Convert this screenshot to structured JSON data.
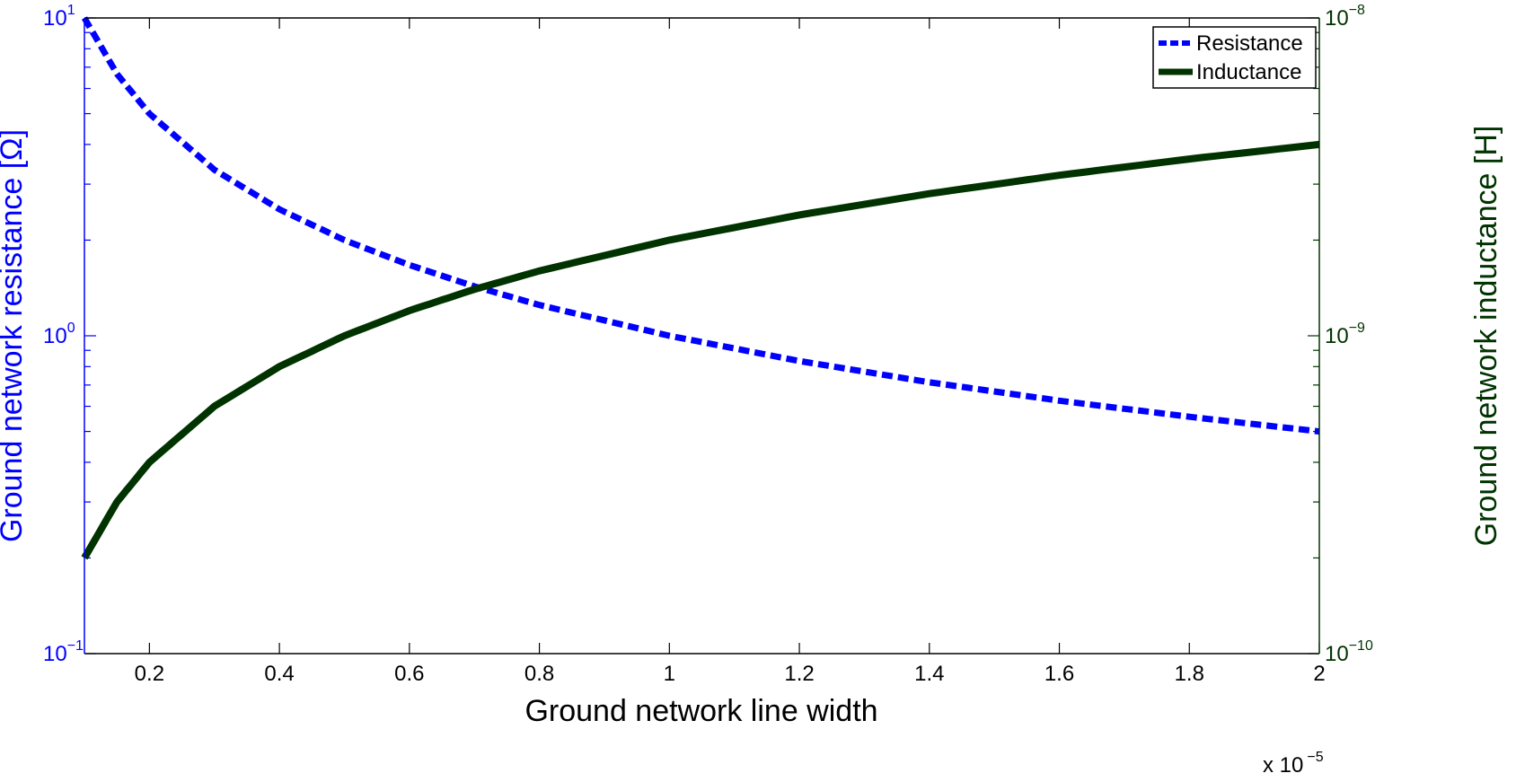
{
  "chart_data": {
    "type": "line",
    "xlabel": "Ground network line width",
    "x_multiplier_label": "x 10",
    "x_multiplier_exponent": "−5",
    "x_scale": 1e-05,
    "x_range": [
      0.1,
      2.0
    ],
    "x_ticks": [
      {
        "value": 0.2,
        "label": "0.2"
      },
      {
        "value": 0.4,
        "label": "0.4"
      },
      {
        "value": 0.6,
        "label": "0.6"
      },
      {
        "value": 0.8,
        "label": "0.8"
      },
      {
        "value": 1.0,
        "label": "1"
      },
      {
        "value": 1.2,
        "label": "1.2"
      },
      {
        "value": 1.4,
        "label": "1.4"
      },
      {
        "value": 1.6,
        "label": "1.6"
      },
      {
        "value": 1.8,
        "label": "1.8"
      },
      {
        "value": 2.0,
        "label": "2"
      }
    ],
    "y_left": {
      "label": "Ground network resistance [Ω]",
      "scale": "log",
      "range": [
        0.1,
        10
      ],
      "color": "#0000ff",
      "ticks": [
        {
          "value": 0.1,
          "base": "10",
          "exp": "−1"
        },
        {
          "value": 1,
          "base": "10",
          "exp": "0"
        },
        {
          "value": 10,
          "base": "10",
          "exp": "1"
        }
      ]
    },
    "y_right": {
      "label": "Ground network inductance [H]",
      "scale": "log",
      "range": [
        1e-10,
        1e-08
      ],
      "color": "#003300",
      "ticks": [
        {
          "value": 1e-10,
          "base": "10",
          "exp": "−10"
        },
        {
          "value": 1e-09,
          "base": "10",
          "exp": "−9"
        },
        {
          "value": 1e-08,
          "base": "10",
          "exp": "−8"
        }
      ]
    },
    "grid": false,
    "legend_position": "top-right",
    "series": [
      {
        "name": "Resistance",
        "axis": "left",
        "color": "#0000ff",
        "style": "dashed",
        "points": [
          [
            0.1,
            10
          ],
          [
            0.15,
            6.67
          ],
          [
            0.2,
            5.0
          ],
          [
            0.3,
            3.33
          ],
          [
            0.4,
            2.5
          ],
          [
            0.5,
            2.0
          ],
          [
            0.6,
            1.67
          ],
          [
            0.7,
            1.43
          ],
          [
            0.8,
            1.25
          ],
          [
            1.0,
            1.0
          ],
          [
            1.2,
            0.833
          ],
          [
            1.4,
            0.714
          ],
          [
            1.6,
            0.625
          ],
          [
            1.8,
            0.556
          ],
          [
            2.0,
            0.5
          ]
        ]
      },
      {
        "name": "Inductance",
        "axis": "right",
        "color": "#003300",
        "style": "solid",
        "points": [
          [
            0.1,
            2e-10
          ],
          [
            0.15,
            3e-10
          ],
          [
            0.2,
            4e-10
          ],
          [
            0.3,
            6e-10
          ],
          [
            0.4,
            8e-10
          ],
          [
            0.5,
            1e-09
          ],
          [
            0.6,
            1.2e-09
          ],
          [
            0.7,
            1.4e-09
          ],
          [
            0.8,
            1.6e-09
          ],
          [
            1.0,
            2e-09
          ],
          [
            1.2,
            2.4e-09
          ],
          [
            1.4,
            2.8e-09
          ],
          [
            1.6,
            3.2e-09
          ],
          [
            1.8,
            3.6e-09
          ],
          [
            2.0,
            4e-09
          ]
        ]
      }
    ]
  }
}
